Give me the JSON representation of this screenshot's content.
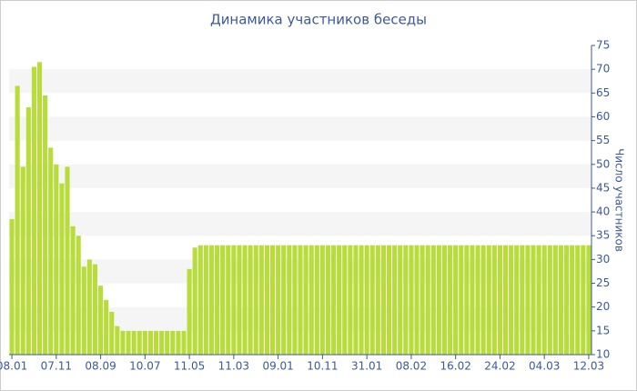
{
  "chart_data": {
    "type": "bar",
    "title": "Динамика участников беседы",
    "y_label": "Число участников",
    "categories": [
      "08.01",
      null,
      null,
      null,
      null,
      null,
      null,
      null,
      "07.11",
      null,
      null,
      null,
      null,
      null,
      null,
      null,
      "08.09",
      null,
      null,
      null,
      null,
      null,
      null,
      null,
      "10.07",
      null,
      null,
      null,
      null,
      null,
      null,
      null,
      "11.05",
      null,
      null,
      null,
      null,
      null,
      null,
      null,
      "11.03",
      null,
      null,
      null,
      null,
      null,
      null,
      null,
      "09.01",
      null,
      null,
      null,
      null,
      null,
      null,
      null,
      "10.11",
      null,
      null,
      null,
      null,
      null,
      null,
      null,
      "31.01",
      null,
      null,
      null,
      null,
      null,
      null,
      null,
      "08.02",
      null,
      null,
      null,
      null,
      null,
      null,
      null,
      "16.02",
      null,
      null,
      null,
      null,
      null,
      null,
      null,
      "24.02",
      null,
      null,
      null,
      null,
      null,
      null,
      null,
      "04.03",
      null,
      null,
      null,
      null,
      null,
      null,
      null,
      "12.03"
    ],
    "values": [
      38.5,
      66.5,
      49.5,
      62,
      70.5,
      71.5,
      64.5,
      53.5,
      50,
      46,
      49.5,
      37,
      35,
      28.5,
      30,
      29,
      24.5,
      21.5,
      19,
      16,
      15,
      15,
      15,
      15,
      15,
      15,
      15,
      15,
      15,
      15,
      15,
      15,
      28,
      32.5,
      33,
      33,
      33,
      33,
      33,
      33,
      33,
      33,
      33,
      33,
      33,
      33,
      33,
      33,
      33,
      33,
      33,
      33,
      33,
      33,
      33,
      33,
      33,
      33,
      33,
      33,
      33,
      33,
      33,
      33,
      33,
      33,
      33,
      33,
      33,
      33,
      33,
      33,
      33,
      33,
      33,
      33,
      33,
      33,
      33,
      33,
      33,
      33,
      33,
      33,
      33,
      33,
      33,
      33,
      33,
      33,
      33,
      33,
      33,
      33,
      33,
      33,
      33,
      33,
      33,
      33,
      33,
      33,
      33,
      33,
      33
    ],
    "color": "#b8dc3c",
    "ylim": [
      10,
      75
    ],
    "yticks": [
      10,
      15,
      20,
      25,
      30,
      35,
      40,
      45,
      50,
      55,
      60,
      65,
      70,
      75
    ],
    "grid": true
  }
}
